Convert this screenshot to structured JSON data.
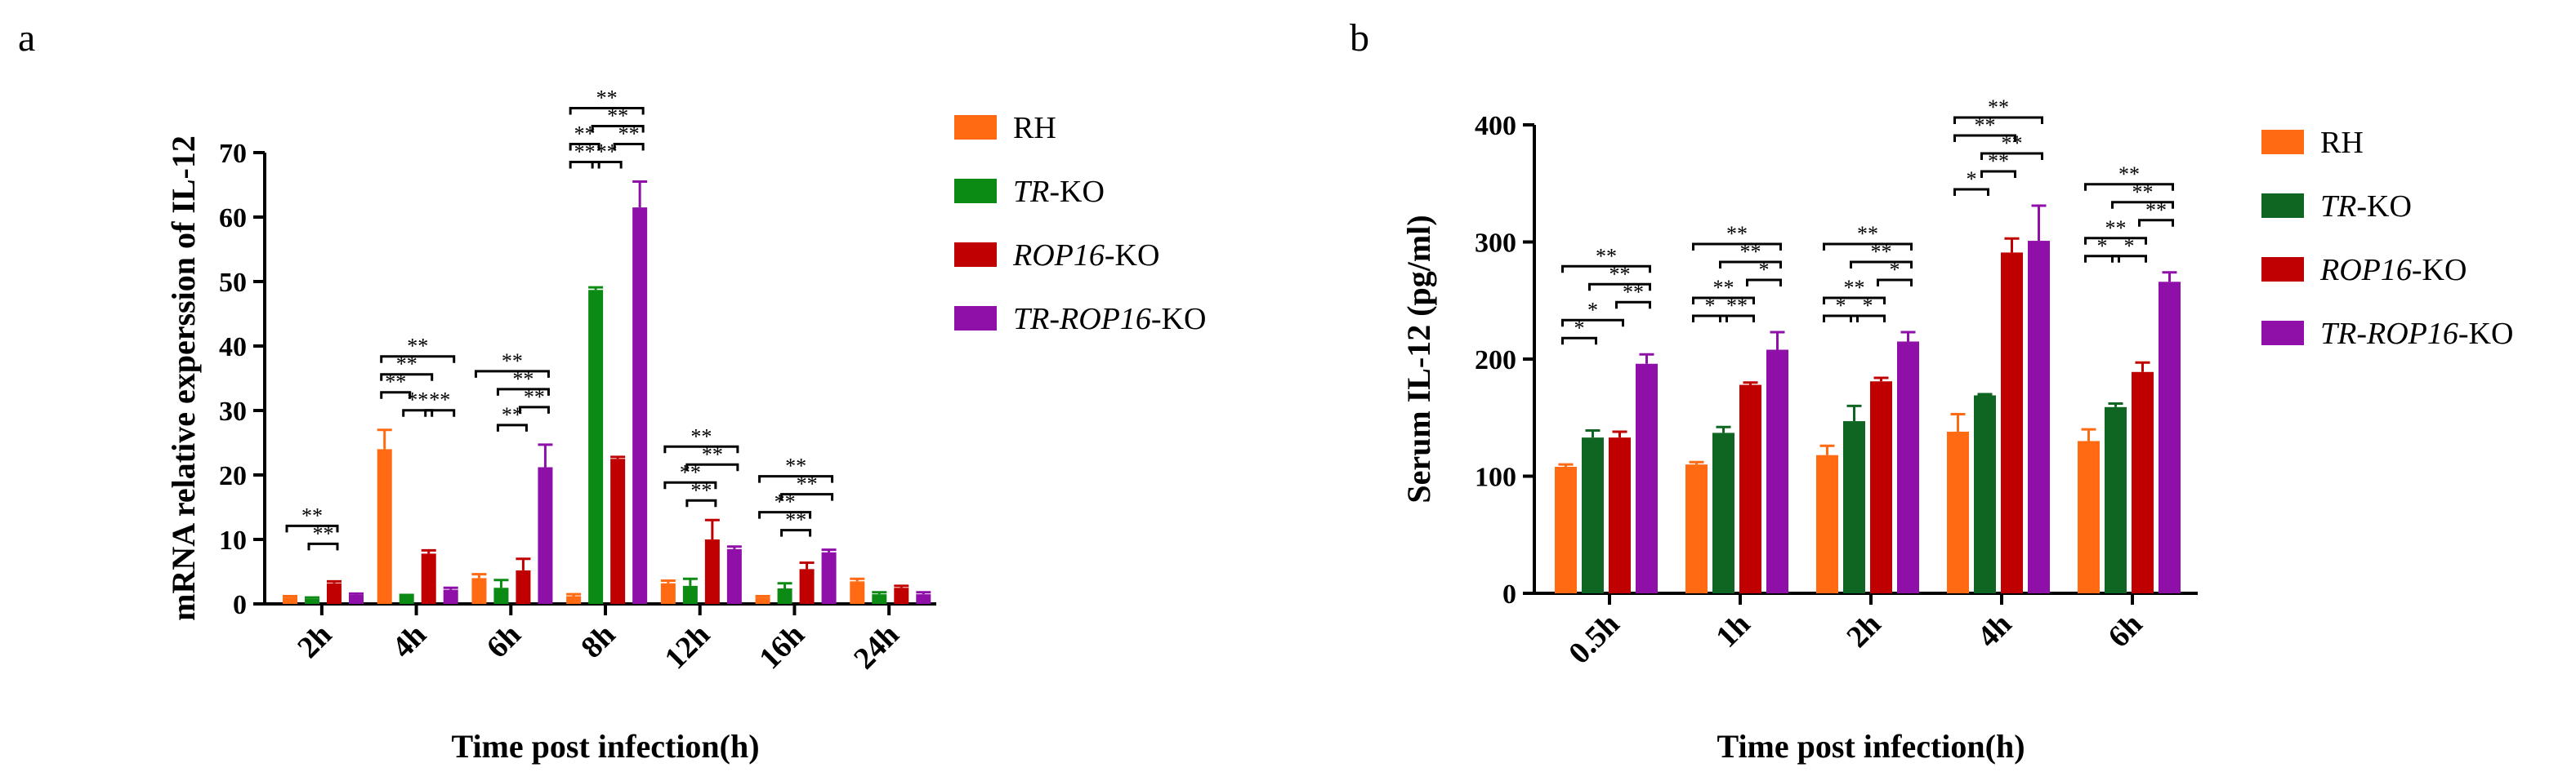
{
  "chart_data": [
    {
      "panel": "a",
      "type": "bar",
      "ylabel": "mRNA relative experssion of IL-12",
      "xlabel": "Time post infection(h)",
      "ylim": [
        0,
        70
      ],
      "yticks": [
        0,
        10,
        20,
        30,
        40,
        50,
        60,
        70
      ],
      "categories": [
        "2h",
        "4h",
        "6h",
        "8h",
        "12h",
        "16h",
        "24h"
      ],
      "series": [
        {
          "name": "RH",
          "values": [
            1,
            24,
            4,
            1.2,
            3.2,
            1,
            3.5
          ],
          "errors": [
            0.2,
            3,
            0.6,
            0.3,
            0.4,
            0.2,
            0.4
          ]
        },
        {
          "name": "TR-KO",
          "values": [
            0.8,
            1.2,
            2.5,
            48.7,
            2.8,
            2.4,
            1.5
          ],
          "errors": [
            0.2,
            0.2,
            1.2,
            0.4,
            1.1,
            0.8,
            0.3
          ]
        },
        {
          "name": "ROP16-KO",
          "values": [
            3.2,
            7.8,
            5.2,
            22.5,
            10,
            5.4,
            2.5
          ],
          "errors": [
            0.3,
            0.5,
            1.8,
            0.3,
            3,
            1,
            0.3
          ]
        },
        {
          "name": "TR-ROP16-KO",
          "values": [
            1.4,
            2.2,
            21.2,
            61.5,
            8.5,
            8,
            1.5
          ],
          "errors": [
            0.2,
            0.3,
            3.5,
            4,
            0.4,
            0.4,
            0.3
          ]
        }
      ],
      "significance": [
        {
          "group": 0,
          "from": 0,
          "to": 2,
          "level": 2,
          "label": "**"
        },
        {
          "group": 0,
          "from": 1,
          "to": 2,
          "level": 1,
          "label": "**"
        },
        {
          "group": 1,
          "from": 0,
          "to": 3,
          "level": 3,
          "label": "**"
        },
        {
          "group": 1,
          "from": 0,
          "to": 2,
          "level": 2,
          "label": "**"
        },
        {
          "group": 1,
          "from": 0,
          "to": 1,
          "level": 1,
          "label": "**"
        },
        {
          "group": 1,
          "from": 1,
          "to": 2,
          "level": 0,
          "label": "**"
        },
        {
          "group": 1,
          "from": 2,
          "to": 3,
          "level": 0,
          "label": "**"
        },
        {
          "group": 2,
          "from": 0,
          "to": 3,
          "level": 3,
          "label": "**"
        },
        {
          "group": 2,
          "from": 1,
          "to": 3,
          "level": 2,
          "label": "**"
        },
        {
          "group": 2,
          "from": 2,
          "to": 3,
          "level": 1,
          "label": "**"
        },
        {
          "group": 2,
          "from": 1,
          "to": 2,
          "level": 0,
          "label": "**"
        },
        {
          "group": 3,
          "from": 0,
          "to": 3,
          "level": 3,
          "label": "**"
        },
        {
          "group": 3,
          "from": 1,
          "to": 3,
          "level": 2,
          "label": "**"
        },
        {
          "group": 3,
          "from": 2,
          "to": 3,
          "level": 1,
          "label": "**"
        },
        {
          "group": 3,
          "from": 0,
          "to": 1,
          "level": 1,
          "label": "**"
        },
        {
          "group": 3,
          "from": 0,
          "to": 1,
          "level": 0,
          "label": "**"
        },
        {
          "group": 3,
          "from": 1,
          "to": 2,
          "level": 0,
          "label": "**"
        },
        {
          "group": 4,
          "from": 0,
          "to": 3,
          "level": 3,
          "label": "**"
        },
        {
          "group": 4,
          "from": 1,
          "to": 3,
          "level": 2,
          "label": "**"
        },
        {
          "group": 4,
          "from": 0,
          "to": 2,
          "level": 1,
          "label": "**"
        },
        {
          "group": 4,
          "from": 1,
          "to": 2,
          "level": 0,
          "label": "**"
        },
        {
          "group": 5,
          "from": 0,
          "to": 3,
          "level": 3,
          "label": "**"
        },
        {
          "group": 5,
          "from": 1,
          "to": 3,
          "level": 2,
          "label": "**"
        },
        {
          "group": 5,
          "from": 0,
          "to": 2,
          "level": 1,
          "label": "**"
        },
        {
          "group": 5,
          "from": 1,
          "to": 2,
          "level": 0,
          "label": "**"
        }
      ]
    },
    {
      "panel": "b",
      "type": "bar",
      "ylabel": "Serum IL-12 (pg/ml)",
      "xlabel": "Time post infection(h)",
      "ylim": [
        0,
        400
      ],
      "yticks": [
        0,
        100,
        200,
        300,
        400
      ],
      "categories": [
        "0.5h",
        "1h",
        "2h",
        "4h",
        "6h"
      ],
      "series": [
        {
          "name": "RH",
          "values": [
            108,
            110,
            118,
            138,
            130
          ],
          "errors": [
            2,
            2,
            8,
            15,
            10
          ]
        },
        {
          "name": "TR-KO",
          "values": [
            133,
            137,
            147,
            169,
            159
          ],
          "errors": [
            6,
            5,
            13,
            1,
            3
          ]
        },
        {
          "name": "ROP16-KO",
          "values": [
            133,
            178,
            181,
            291,
            189
          ],
          "errors": [
            5,
            2,
            3,
            12,
            8
          ]
        },
        {
          "name": "TR-ROP16-KO",
          "values": [
            196,
            208,
            215,
            301,
            266
          ],
          "errors": [
            8,
            15,
            8,
            30,
            8
          ]
        }
      ],
      "significance": [
        {
          "group": 0,
          "from": 0,
          "to": 1,
          "level": 0,
          "label": "*"
        },
        {
          "group": 0,
          "from": 0,
          "to": 2,
          "level": 1,
          "label": "*"
        },
        {
          "group": 0,
          "from": 0,
          "to": 3,
          "level": 4,
          "label": "**"
        },
        {
          "group": 0,
          "from": 1,
          "to": 3,
          "level": 3,
          "label": "**"
        },
        {
          "group": 0,
          "from": 2,
          "to": 3,
          "level": 2,
          "label": "**"
        },
        {
          "group": 1,
          "from": 0,
          "to": 1,
          "level": 0,
          "label": "*"
        },
        {
          "group": 1,
          "from": 1,
          "to": 2,
          "level": 0,
          "label": "**"
        },
        {
          "group": 1,
          "from": 0,
          "to": 2,
          "level": 1,
          "label": "**"
        },
        {
          "group": 1,
          "from": 2,
          "to": 3,
          "level": 2,
          "label": "*"
        },
        {
          "group": 1,
          "from": 1,
          "to": 3,
          "level": 3,
          "label": "**"
        },
        {
          "group": 1,
          "from": 0,
          "to": 3,
          "level": 4,
          "label": "**"
        },
        {
          "group": 2,
          "from": 0,
          "to": 1,
          "level": 0,
          "label": "*"
        },
        {
          "group": 2,
          "from": 1,
          "to": 2,
          "level": 0,
          "label": "*"
        },
        {
          "group": 2,
          "from": 0,
          "to": 2,
          "level": 1,
          "label": "**"
        },
        {
          "group": 2,
          "from": 2,
          "to": 3,
          "level": 2,
          "label": "*"
        },
        {
          "group": 2,
          "from": 1,
          "to": 3,
          "level": 3,
          "label": "**"
        },
        {
          "group": 2,
          "from": 0,
          "to": 3,
          "level": 4,
          "label": "**"
        },
        {
          "group": 3,
          "from": 0,
          "to": 1,
          "level": 0,
          "label": "*"
        },
        {
          "group": 3,
          "from": 1,
          "to": 2,
          "level": 1,
          "label": "**"
        },
        {
          "group": 3,
          "from": 1,
          "to": 3,
          "level": 2,
          "label": "**"
        },
        {
          "group": 3,
          "from": 0,
          "to": 2,
          "level": 3,
          "label": "**"
        },
        {
          "group": 3,
          "from": 0,
          "to": 3,
          "level": 4,
          "label": "**"
        },
        {
          "group": 4,
          "from": 0,
          "to": 1,
          "level": 0,
          "label": "*"
        },
        {
          "group": 4,
          "from": 1,
          "to": 2,
          "level": 0,
          "label": "*"
        },
        {
          "group": 4,
          "from": 0,
          "to": 2,
          "level": 1,
          "label": "**"
        },
        {
          "group": 4,
          "from": 2,
          "to": 3,
          "level": 2,
          "label": "**"
        },
        {
          "group": 4,
          "from": 1,
          "to": 3,
          "level": 3,
          "label": "**"
        },
        {
          "group": 4,
          "from": 0,
          "to": 3,
          "level": 4,
          "label": "**"
        }
      ]
    }
  ],
  "legend_a": [
    {
      "italic": "",
      "plain": "RH",
      "color": "#FF6A13"
    },
    {
      "italic": "TR",
      "plain": "-KO",
      "color": "#0B8A14"
    },
    {
      "italic": "ROP16",
      "plain": "-KO",
      "color": "#C00000"
    },
    {
      "italic": "TR-ROP16",
      "plain": "-KO",
      "color": "#8E10A8"
    }
  ],
  "legend_b": [
    {
      "italic": "",
      "plain": "RH",
      "color": "#FF6A13"
    },
    {
      "italic": "TR",
      "plain": "-KO",
      "color": "#0F6623"
    },
    {
      "italic": "ROP16",
      "plain": "-KO",
      "color": "#C00000"
    },
    {
      "italic": "TR-ROP16",
      "plain": "-KO",
      "color": "#8E10A8"
    }
  ],
  "colors_a": [
    "#FF6A13",
    "#0B8A14",
    "#C00000",
    "#8E10A8"
  ],
  "colors_b": [
    "#FF6A13",
    "#0F6623",
    "#C00000",
    "#8E10A8"
  ]
}
